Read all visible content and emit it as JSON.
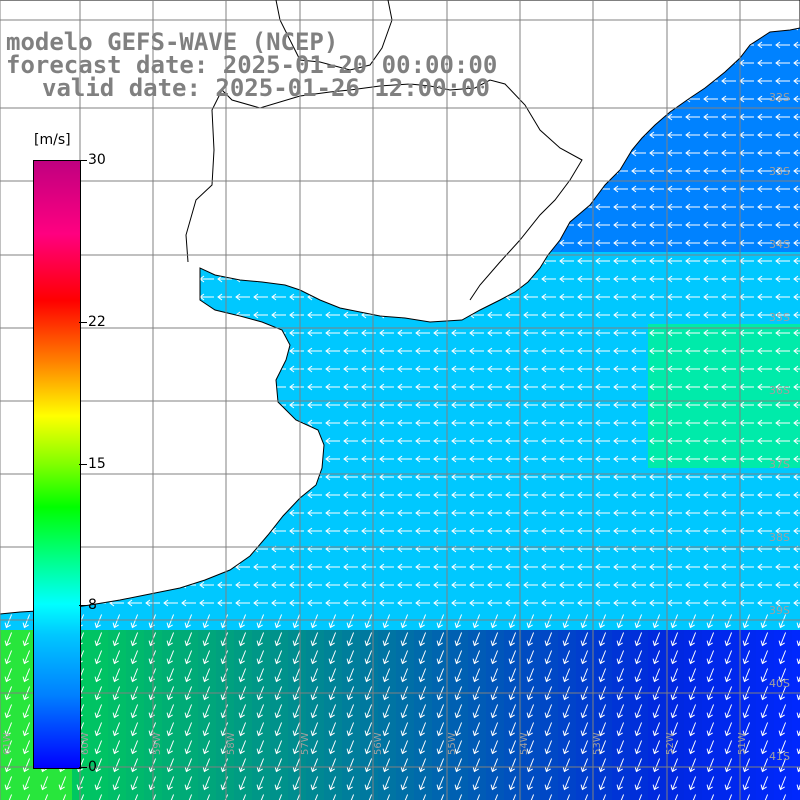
{
  "header": {
    "line1": "modelo GEFS-WAVE (NCEP)",
    "line2": "forecast date: 2025-01-20 00:00:00",
    "line3": "valid date: 2025-01-26 12:00:00"
  },
  "colorbar": {
    "unit": "[m/s]",
    "ticks": [
      {
        "label": "30",
        "value": 30
      },
      {
        "label": "22",
        "value": 22
      },
      {
        "label": "15",
        "value": 15
      },
      {
        "label": "8",
        "value": 8
      },
      {
        "label": "0",
        "value": 0
      }
    ]
  },
  "map": {
    "lat_labels": [
      "32S",
      "33S",
      "34S",
      "35S",
      "36S",
      "37S",
      "38S",
      "39S",
      "40S",
      "41S"
    ],
    "lon_labels": [
      "61W",
      "60W",
      "59W",
      "58W",
      "57W",
      "56W",
      "55W",
      "54W",
      "53W",
      "52W",
      "51W"
    ],
    "colors": {
      "land": "#ffffff",
      "grid": "#808080",
      "coast": "#000000",
      "arrow": "#ffffff"
    }
  }
}
